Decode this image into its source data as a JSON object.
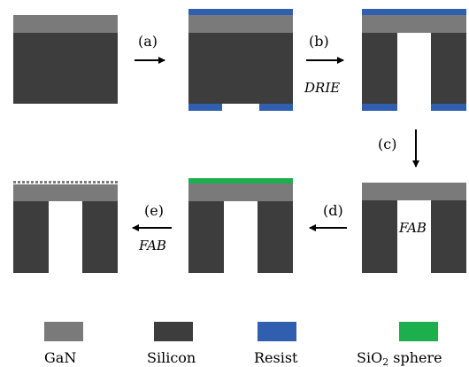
{
  "colors": {
    "gan": "#7a7a7a",
    "silicon": "#3d3d3d",
    "resist": "#2f5fae",
    "sio2": "#1dae4d",
    "arrow": "#000000"
  },
  "steps": {
    "a": {
      "label": "(a)",
      "method": ""
    },
    "b": {
      "label": "(b)",
      "method": "DRIE"
    },
    "c": {
      "label": "(c)",
      "method": ""
    },
    "d": {
      "label": "(d)",
      "method": "FAB"
    },
    "e": {
      "label": "(e)",
      "method": "FAB"
    }
  },
  "legend": {
    "gan": "GaN",
    "silicon": "Silicon",
    "resist": "Resist",
    "sio2_prefix": "SiO",
    "sio2_sub": "2",
    "sio2_suffix": " sphere"
  }
}
